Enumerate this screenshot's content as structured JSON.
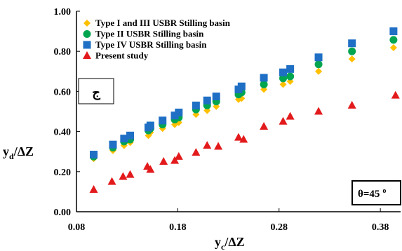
{
  "chart_data": {
    "type": "scatter",
    "title": "",
    "xlabel": {
      "main": "y",
      "sub": "c",
      "rest": "/ΔZ"
    },
    "ylabel": {
      "main": "y",
      "sub": "d",
      "rest": "/ΔZ"
    },
    "xlim": [
      0.08,
      0.4
    ],
    "ylim": [
      0.0,
      1.0
    ],
    "x_ticks": [
      "0.08",
      "0.18",
      "0.28",
      "0.38"
    ],
    "x_tick_values": [
      0.08,
      0.18,
      0.28,
      0.38
    ],
    "y_ticks": [
      "0.00",
      "0.20",
      "0.40",
      "0.60",
      "0.80",
      "1.00"
    ],
    "y_tick_values": [
      0.0,
      0.2,
      0.4,
      0.6,
      0.8,
      1.0
    ],
    "grid": false,
    "legend_position": "top-left",
    "panel_label": "ج",
    "annotation": {
      "text": "θ=45",
      "superscript": "o"
    },
    "series": [
      {
        "name": "Type I and III USBR Stilling basin",
        "marker": "diamond",
        "color": "#FFC000",
        "points": [
          [
            0.097,
            0.265
          ],
          [
            0.116,
            0.305
          ],
          [
            0.127,
            0.33
          ],
          [
            0.133,
            0.345
          ],
          [
            0.151,
            0.38
          ],
          [
            0.153,
            0.395
          ],
          [
            0.165,
            0.415
          ],
          [
            0.177,
            0.435
          ],
          [
            0.181,
            0.445
          ],
          [
            0.198,
            0.485
          ],
          [
            0.209,
            0.505
          ],
          [
            0.218,
            0.525
          ],
          [
            0.24,
            0.56
          ],
          [
            0.243,
            0.565
          ],
          [
            0.265,
            0.61
          ],
          [
            0.284,
            0.635
          ],
          [
            0.291,
            0.65
          ],
          [
            0.319,
            0.7
          ],
          [
            0.352,
            0.762
          ],
          [
            0.393,
            0.818
          ]
        ]
      },
      {
        "name": "Type II USBR Stilling basin",
        "marker": "circle",
        "color": "#00A550",
        "points": [
          [
            0.097,
            0.275
          ],
          [
            0.116,
            0.32
          ],
          [
            0.127,
            0.35
          ],
          [
            0.133,
            0.36
          ],
          [
            0.151,
            0.405
          ],
          [
            0.153,
            0.415
          ],
          [
            0.165,
            0.435
          ],
          [
            0.177,
            0.46
          ],
          [
            0.181,
            0.47
          ],
          [
            0.198,
            0.51
          ],
          [
            0.209,
            0.53
          ],
          [
            0.218,
            0.55
          ],
          [
            0.24,
            0.585
          ],
          [
            0.243,
            0.595
          ],
          [
            0.265,
            0.635
          ],
          [
            0.284,
            0.665
          ],
          [
            0.291,
            0.675
          ],
          [
            0.319,
            0.735
          ],
          [
            0.352,
            0.8
          ],
          [
            0.393,
            0.857
          ]
        ]
      },
      {
        "name": "Type IV USBR Stilling basin",
        "marker": "square",
        "color": "#1F6FC5",
        "points": [
          [
            0.097,
            0.285
          ],
          [
            0.116,
            0.335
          ],
          [
            0.127,
            0.365
          ],
          [
            0.133,
            0.38
          ],
          [
            0.151,
            0.42
          ],
          [
            0.153,
            0.43
          ],
          [
            0.165,
            0.455
          ],
          [
            0.177,
            0.48
          ],
          [
            0.181,
            0.495
          ],
          [
            0.198,
            0.53
          ],
          [
            0.209,
            0.555
          ],
          [
            0.218,
            0.575
          ],
          [
            0.24,
            0.61
          ],
          [
            0.243,
            0.625
          ],
          [
            0.265,
            0.668
          ],
          [
            0.284,
            0.695
          ],
          [
            0.291,
            0.712
          ],
          [
            0.319,
            0.77
          ],
          [
            0.352,
            0.84
          ],
          [
            0.393,
            0.9
          ]
        ]
      },
      {
        "name": "Present study",
        "marker": "triangle",
        "color": "#E31A1C",
        "points": [
          [
            0.097,
            0.11
          ],
          [
            0.115,
            0.15
          ],
          [
            0.126,
            0.175
          ],
          [
            0.133,
            0.185
          ],
          [
            0.15,
            0.225
          ],
          [
            0.153,
            0.21
          ],
          [
            0.166,
            0.25
          ],
          [
            0.177,
            0.255
          ],
          [
            0.181,
            0.275
          ],
          [
            0.198,
            0.295
          ],
          [
            0.209,
            0.33
          ],
          [
            0.22,
            0.325
          ],
          [
            0.24,
            0.37
          ],
          [
            0.245,
            0.36
          ],
          [
            0.265,
            0.425
          ],
          [
            0.284,
            0.45
          ],
          [
            0.291,
            0.475
          ],
          [
            0.319,
            0.5
          ],
          [
            0.352,
            0.53
          ],
          [
            0.395,
            0.58
          ]
        ]
      }
    ]
  }
}
